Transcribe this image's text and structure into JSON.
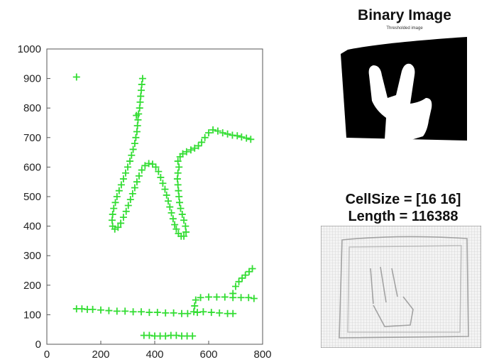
{
  "chart_data": {
    "type": "scatter",
    "title": "",
    "xlabel": "",
    "ylabel": "",
    "xlim": [
      0,
      800
    ],
    "ylim": [
      0,
      1000
    ],
    "xticks": [
      "0",
      "200",
      "400",
      "600",
      "800"
    ],
    "yticks": [
      "0",
      "100",
      "200",
      "300",
      "400",
      "500",
      "600",
      "700",
      "800",
      "900",
      "1000"
    ],
    "grid": false,
    "marker": "+",
    "color": "#33dd33",
    "series": [
      {
        "points": [
          [
            110,
            905
          ],
          [
            355,
            900
          ],
          [
            352,
            880
          ],
          [
            350,
            860
          ],
          [
            348,
            840
          ],
          [
            346,
            820
          ],
          [
            344,
            800
          ],
          [
            340,
            780
          ],
          [
            332,
            775
          ],
          [
            338,
            760
          ],
          [
            336,
            740
          ],
          [
            334,
            720
          ],
          [
            330,
            700
          ],
          [
            326,
            680
          ],
          [
            320,
            660
          ],
          [
            314,
            640
          ],
          [
            308,
            620
          ],
          [
            300,
            600
          ],
          [
            292,
            580
          ],
          [
            284,
            560
          ],
          [
            276,
            540
          ],
          [
            268,
            520
          ],
          [
            260,
            500
          ],
          [
            254,
            480
          ],
          [
            248,
            460
          ],
          [
            244,
            440
          ],
          [
            242,
            420
          ],
          [
            244,
            400
          ],
          [
            252,
            390
          ],
          [
            264,
            396
          ],
          [
            274,
            410
          ],
          [
            284,
            430
          ],
          [
            294,
            450
          ],
          [
            302,
            470
          ],
          [
            310,
            490
          ],
          [
            318,
            510
          ],
          [
            326,
            530
          ],
          [
            334,
            550
          ],
          [
            342,
            570
          ],
          [
            352,
            590
          ],
          [
            364,
            605
          ],
          [
            378,
            612
          ],
          [
            392,
            610
          ],
          [
            404,
            600
          ],
          [
            414,
            585
          ],
          [
            422,
            565
          ],
          [
            430,
            545
          ],
          [
            438,
            525
          ],
          [
            444,
            505
          ],
          [
            450,
            485
          ],
          [
            456,
            465
          ],
          [
            462,
            445
          ],
          [
            468,
            425
          ],
          [
            474,
            405
          ],
          [
            480,
            390
          ],
          [
            488,
            375
          ],
          [
            498,
            366
          ],
          [
            508,
            366
          ],
          [
            516,
            380
          ],
          [
            514,
            400
          ],
          [
            508,
            420
          ],
          [
            502,
            440
          ],
          [
            496,
            460
          ],
          [
            492,
            480
          ],
          [
            490,
            500
          ],
          [
            488,
            520
          ],
          [
            486,
            540
          ],
          [
            484,
            560
          ],
          [
            486,
            580
          ],
          [
            490,
            600
          ],
          [
            486,
            620
          ],
          [
            494,
            635
          ],
          [
            504,
            645
          ],
          [
            518,
            652
          ],
          [
            534,
            658
          ],
          [
            548,
            664
          ],
          [
            562,
            672
          ],
          [
            574,
            684
          ],
          [
            586,
            700
          ],
          [
            600,
            716
          ],
          [
            616,
            726
          ],
          [
            634,
            722
          ],
          [
            652,
            716
          ],
          [
            670,
            712
          ],
          [
            688,
            708
          ],
          [
            706,
            706
          ],
          [
            722,
            702
          ],
          [
            740,
            698
          ],
          [
            756,
            694
          ]
        ]
      },
      {
        "points": [
          [
            110,
            120
          ],
          [
            130,
            120
          ],
          [
            150,
            118
          ],
          [
            170,
            118
          ],
          [
            200,
            116
          ],
          [
            230,
            114
          ],
          [
            260,
            112
          ],
          [
            290,
            112
          ],
          [
            320,
            110
          ],
          [
            350,
            110
          ],
          [
            380,
            108
          ],
          [
            410,
            108
          ],
          [
            440,
            106
          ],
          [
            470,
            106
          ],
          [
            500,
            104
          ],
          [
            522,
            104
          ],
          [
            545,
            110
          ],
          [
            548,
            130
          ],
          [
            552,
            150
          ],
          [
            570,
            158
          ],
          [
            600,
            160
          ],
          [
            630,
            160
          ],
          [
            660,
            160
          ],
          [
            690,
            158
          ],
          [
            720,
            158
          ],
          [
            748,
            158
          ],
          [
            768,
            155
          ],
          [
            558,
            108
          ],
          [
            580,
            110
          ],
          [
            610,
            108
          ],
          [
            640,
            106
          ],
          [
            670,
            104
          ],
          [
            690,
            104
          ],
          [
            690,
            172
          ],
          [
            700,
            196
          ],
          [
            712,
            212
          ],
          [
            724,
            224
          ],
          [
            736,
            234
          ],
          [
            750,
            246
          ],
          [
            762,
            256
          ],
          [
            360,
            30
          ],
          [
            380,
            30
          ],
          [
            400,
            28
          ],
          [
            420,
            28
          ],
          [
            440,
            28
          ],
          [
            460,
            30
          ],
          [
            480,
            30
          ],
          [
            500,
            28
          ],
          [
            520,
            28
          ],
          [
            540,
            28
          ]
        ]
      }
    ]
  },
  "binary_panel": {
    "title": "Binary Image",
    "subtitle": "Thresholded image"
  },
  "hog_panel": {
    "line1": "CellSize = [16 16]",
    "line2": "Length = 116388"
  }
}
